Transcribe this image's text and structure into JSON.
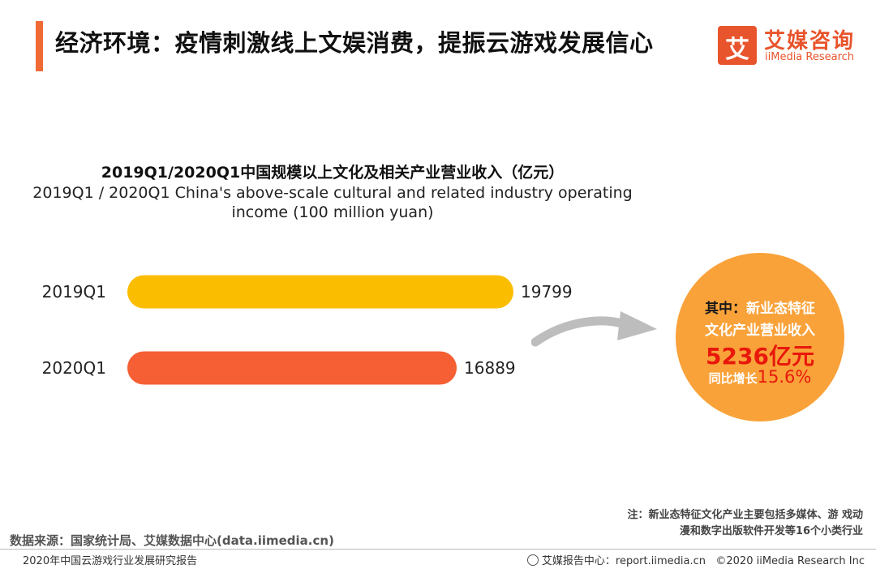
{
  "header": {
    "title": "经济环境：疫情刺激线上文娱消费，提振云游戏发展信心",
    "logo_glyph": "艾",
    "logo_cn": "艾媒咨询",
    "logo_en": "iiMedia Research",
    "accent_color": "#f06a35"
  },
  "chart_data": {
    "type": "bar",
    "orientation": "horizontal",
    "title": "2019Q1/2020Q1中国规模以上文化及相关产业营业收入（亿元）",
    "subtitle": "2019Q1 / 2020Q1 China's above-scale cultural and related industry operating income (100 million yuan)",
    "categories": [
      "2019Q1",
      "2020Q1"
    ],
    "values": [
      19799,
      16889
    ],
    "colors": [
      "#fbbd00",
      "#f55f33"
    ],
    "xlim": [
      0,
      19799
    ],
    "grid": false,
    "legend": false
  },
  "callout": {
    "label_prefix": "其中：",
    "label_suffix": "新业态特征",
    "label_line2": "文化产业营业收入",
    "value": "5236亿元",
    "growth_label": "同比增长",
    "growth_value": "15.6%",
    "circle_color": "#f9a23a",
    "value_color": "#e8180c"
  },
  "footer": {
    "note_line1": "注：新业态特征文化产业主要包括多媒体、游  戏动",
    "note_line2": "漫和数字出版软件开发等16个小类行业",
    "source": "数据来源：国家统计局、艾媒数据中心(data.iimedia.cn)",
    "report_name": "2020年中国云游戏行业发展研究报告",
    "report_center": "艾媒报告中心：report.iimedia.cn",
    "copyright": "©2020  iiMedia Research  Inc"
  }
}
